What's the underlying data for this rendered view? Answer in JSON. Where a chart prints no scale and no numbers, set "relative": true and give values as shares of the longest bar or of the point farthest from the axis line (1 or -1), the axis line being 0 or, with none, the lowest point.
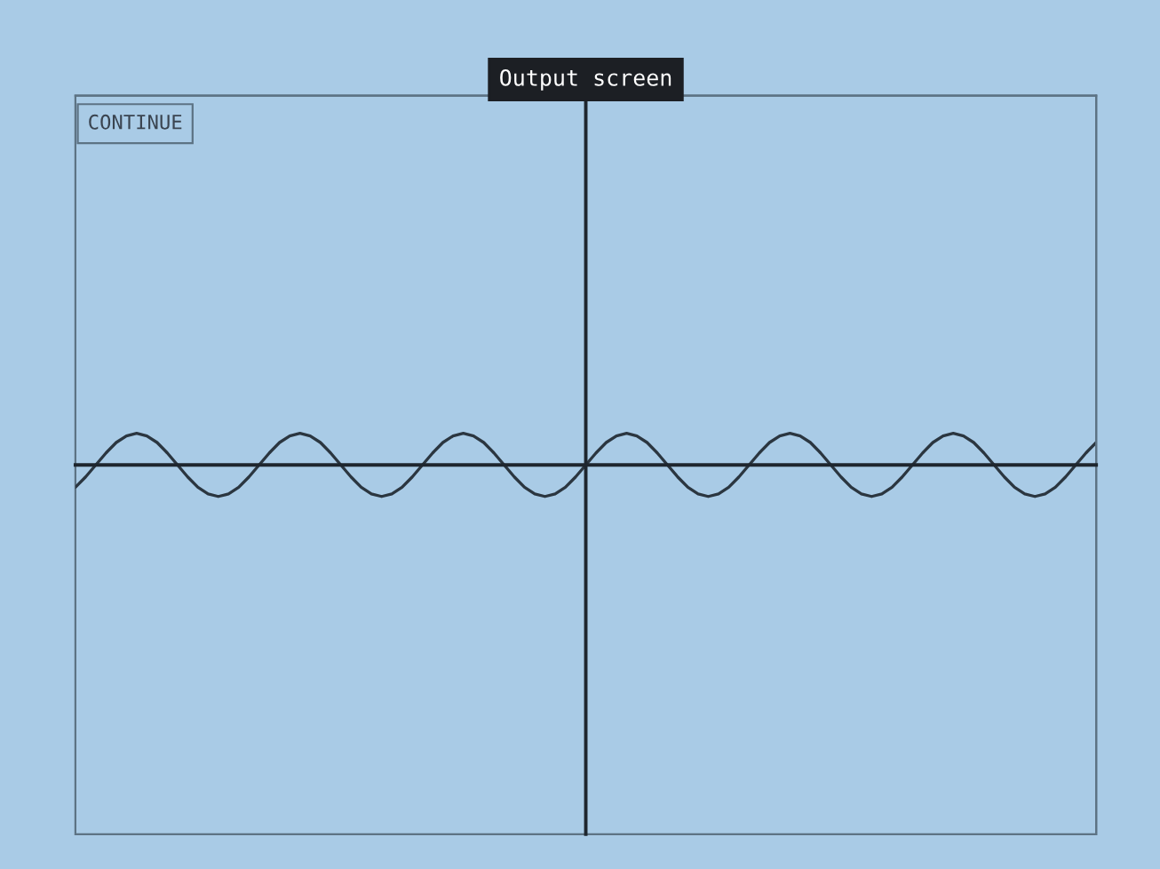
{
  "chart_data": {
    "type": "line",
    "title": "Output screen",
    "relative": true,
    "annotations": [
      "CONTINUE"
    ],
    "categories": [
      null,
      null,
      null,
      null,
      null,
      null,
      null,
      null,
      null,
      null,
      null,
      null,
      null,
      null,
      null,
      null,
      null,
      null,
      null,
      null,
      null,
      null,
      null,
      null,
      null,
      null,
      null,
      null,
      null,
      null,
      null,
      null,
      null,
      null,
      null,
      null,
      null,
      null,
      null,
      null,
      null,
      null,
      null,
      null,
      null,
      null,
      null,
      null,
      null,
      null,
      null,
      null,
      null,
      null,
      null,
      null,
      null,
      null,
      null,
      null,
      null,
      null,
      null,
      null,
      null,
      null,
      null,
      null,
      null,
      null,
      null,
      null,
      null,
      null,
      null,
      null,
      null,
      null,
      null,
      null,
      null,
      null,
      null,
      null,
      null,
      null,
      null,
      null,
      null,
      null,
      null,
      null,
      null,
      null,
      null,
      null,
      null,
      null,
      null,
      null,
      null
    ],
    "series": [
      {
        "color": "#2b3640",
        "values": [
          -0.71,
          -0.38,
          0,
          0.38,
          0.71,
          0.92,
          1,
          0.92,
          0.71,
          0.38,
          0,
          -0.38,
          -0.71,
          -0.92,
          -1,
          -0.92,
          -0.71,
          -0.38,
          0,
          0.38,
          0.71,
          0.92,
          1,
          0.92,
          0.71,
          0.38,
          0,
          -0.38,
          -0.71,
          -0.92,
          -1,
          -0.92,
          -0.71,
          -0.38,
          0,
          0.38,
          0.71,
          0.92,
          1,
          0.92,
          0.71,
          0.38,
          0,
          -0.38,
          -0.71,
          -0.92,
          -1,
          -0.92,
          -0.71,
          -0.38,
          0,
          0.38,
          0.71,
          0.92,
          1,
          0.92,
          0.71,
          0.38,
          0,
          -0.38,
          -0.71,
          -0.92,
          -1,
          -0.92,
          -0.71,
          -0.38,
          0,
          0.38,
          0.71,
          0.92,
          1,
          0.92,
          0.71,
          0.38,
          0,
          -0.38,
          -0.71,
          -0.92,
          -1,
          -0.92,
          -0.71,
          -0.38,
          0,
          0.38,
          0.71,
          0.92,
          1,
          0.92,
          0.71,
          0.38,
          0,
          -0.38,
          -0.71,
          -0.92,
          -1,
          -0.92,
          -0.71,
          -0.38,
          0,
          0.38,
          0.71
        ]
      }
    ]
  }
}
